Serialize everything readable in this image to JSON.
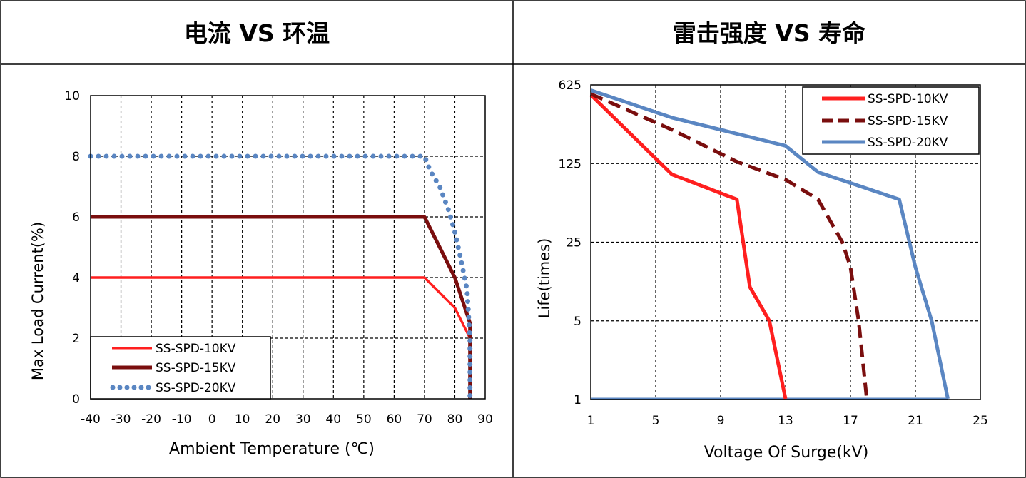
{
  "header": {
    "left_title": "电流 VS  环温",
    "right_title": "雷击强度 VS 寿命"
  },
  "chart_data": [
    {
      "type": "line",
      "title": "电流 VS  环温",
      "xlabel": "Ambient Temperature (℃)",
      "ylabel": "Max  Load Current(%)",
      "xlim": [
        -40,
        90
      ],
      "ylim": [
        0,
        10
      ],
      "x_ticks": [
        "-40",
        "-30",
        "-20",
        "-10",
        "0",
        "10",
        "20",
        "30",
        "40",
        "50",
        "60",
        "70",
        "80",
        "90"
      ],
      "y_ticks": [
        "0",
        "2",
        "4",
        "6",
        "8",
        "10"
      ],
      "grid": true,
      "legend_position": "bottom-left",
      "series": [
        {
          "name": "SS-SPD-10KV",
          "color": "#ff1f1f",
          "style": "solid",
          "points": [
            [
              -40,
              4
            ],
            [
              70,
              4
            ],
            [
              80,
              3
            ],
            [
              85,
              2
            ],
            [
              85,
              0
            ]
          ]
        },
        {
          "name": "SS-SPD-15KV",
          "color": "#7a0e0e",
          "style": "solid",
          "points": [
            [
              -40,
              6
            ],
            [
              70,
              6
            ],
            [
              80,
              4
            ],
            [
              85,
              2.5
            ],
            [
              85,
              0
            ]
          ]
        },
        {
          "name": "SS-SPD-20KV",
          "color": "#5a86c2",
          "style": "dotted",
          "points": [
            [
              -40,
              8
            ],
            [
              70,
              8
            ],
            [
              72,
              7.5
            ],
            [
              75,
              7
            ],
            [
              78,
              6.2
            ],
            [
              80,
              5.5
            ],
            [
              82,
              4.6
            ],
            [
              84,
              3.6
            ],
            [
              85,
              2
            ],
            [
              85,
              0
            ]
          ]
        }
      ]
    },
    {
      "type": "line",
      "title": "雷击强度 VS 寿命",
      "xlabel": "Voltage Of Surge(kV)",
      "ylabel": "Life(times)",
      "xlim": [
        1,
        25
      ],
      "y_scale": "log",
      "ylim": [
        1,
        625
      ],
      "x_ticks": [
        "1",
        "5",
        "9",
        "13",
        "17",
        "21",
        "25"
      ],
      "y_ticks": [
        "1",
        "5",
        "25",
        "125",
        "625"
      ],
      "grid": true,
      "legend_position": "top-right",
      "series": [
        {
          "name": "SS-SPD-10KV",
          "color": "#ff1f1f",
          "style": "solid",
          "points": [
            [
              1,
              510
            ],
            [
              6,
              100
            ],
            [
              10,
              60
            ],
            [
              10.8,
              10
            ],
            [
              12,
              5
            ],
            [
              13,
              1
            ]
          ]
        },
        {
          "name": "SS-SPD-15KV",
          "color": "#7a0e0e",
          "style": "dashed",
          "points": [
            [
              1,
              520
            ],
            [
              6,
              250
            ],
            [
              10,
              130
            ],
            [
              13,
              90
            ],
            [
              15,
              60
            ],
            [
              16.5,
              25
            ],
            [
              17,
              15
            ],
            [
              17.5,
              5
            ],
            [
              18,
              1
            ]
          ]
        },
        {
          "name": "SS-SPD-20KV",
          "color": "#5a86c2",
          "style": "solid",
          "points": [
            [
              1,
              560
            ],
            [
              6,
              320
            ],
            [
              13,
              180
            ],
            [
              15,
              105
            ],
            [
              20,
              60
            ],
            [
              21,
              15
            ],
            [
              22,
              5
            ],
            [
              23,
              1
            ]
          ]
        }
      ],
      "baseline": {
        "color": "#5a86c2",
        "from": 1,
        "to": 23,
        "y": 1
      }
    }
  ]
}
